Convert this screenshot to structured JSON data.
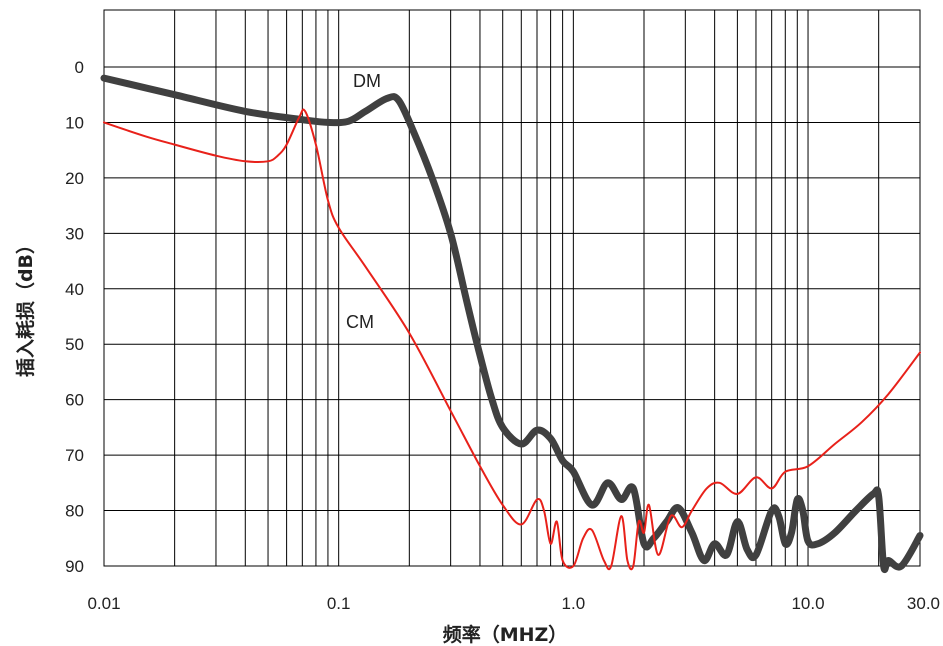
{
  "chart_data": {
    "type": "line",
    "xlabel": "频率（MHZ）",
    "ylabel": "插入耗损（dB）",
    "x_scale": "log",
    "xlim": [
      0.01,
      30.0
    ],
    "ylim": [
      0,
      90
    ],
    "y_inverted": true,
    "grid": true,
    "x_tick_labels": [
      "0.01",
      "0.1",
      "1.0",
      "10.0",
      "30.0"
    ],
    "x_ticks": [
      0.01,
      0.1,
      1.0,
      10.0,
      30.0
    ],
    "y_ticks": [
      0,
      10,
      20,
      30,
      40,
      50,
      60,
      70,
      80,
      90
    ],
    "series": [
      {
        "name": "DM",
        "color": "#404040",
        "points": [
          [
            0.01,
            2
          ],
          [
            0.02,
            5
          ],
          [
            0.04,
            8
          ],
          [
            0.07,
            9.5
          ],
          [
            0.09,
            10
          ],
          [
            0.11,
            9.8
          ],
          [
            0.13,
            8
          ],
          [
            0.16,
            5.7
          ],
          [
            0.18,
            6
          ],
          [
            0.21,
            12
          ],
          [
            0.25,
            20
          ],
          [
            0.3,
            30
          ],
          [
            0.35,
            42
          ],
          [
            0.4,
            52
          ],
          [
            0.45,
            60
          ],
          [
            0.5,
            65
          ],
          [
            0.6,
            68
          ],
          [
            0.7,
            65.5
          ],
          [
            0.8,
            67
          ],
          [
            0.9,
            71
          ],
          [
            1.0,
            73
          ],
          [
            1.2,
            79
          ],
          [
            1.4,
            75
          ],
          [
            1.6,
            78
          ],
          [
            1.8,
            76
          ],
          [
            2.0,
            86
          ],
          [
            2.2,
            85
          ],
          [
            2.5,
            82
          ],
          [
            2.8,
            79.5
          ],
          [
            3.2,
            84
          ],
          [
            3.6,
            89
          ],
          [
            4.0,
            86
          ],
          [
            4.5,
            88
          ],
          [
            5.0,
            82
          ],
          [
            5.5,
            87
          ],
          [
            6.0,
            88
          ],
          [
            7.0,
            80
          ],
          [
            7.5,
            81
          ],
          [
            8.0,
            86
          ],
          [
            8.5,
            84
          ],
          [
            9.0,
            78
          ],
          [
            9.5,
            80
          ],
          [
            10.0,
            85.5
          ],
          [
            11.0,
            86
          ],
          [
            13.0,
            84
          ],
          [
            16.0,
            80
          ],
          [
            19.0,
            77
          ],
          [
            20.0,
            77.5
          ],
          [
            21.0,
            90
          ],
          [
            22.0,
            89
          ],
          [
            25.0,
            90
          ],
          [
            30.0,
            84.5
          ]
        ]
      },
      {
        "name": "CM",
        "color": "#e8211a",
        "points": [
          [
            0.01,
            10
          ],
          [
            0.015,
            12.5
          ],
          [
            0.02,
            14
          ],
          [
            0.03,
            16
          ],
          [
            0.04,
            17
          ],
          [
            0.05,
            17
          ],
          [
            0.055,
            16
          ],
          [
            0.06,
            14
          ],
          [
            0.068,
            9
          ],
          [
            0.072,
            8
          ],
          [
            0.08,
            14
          ],
          [
            0.09,
            24
          ],
          [
            0.1,
            29
          ],
          [
            0.13,
            36
          ],
          [
            0.2,
            48
          ],
          [
            0.3,
            62
          ],
          [
            0.4,
            72
          ],
          [
            0.5,
            79
          ],
          [
            0.6,
            82.5
          ],
          [
            0.7,
            78
          ],
          [
            0.75,
            80
          ],
          [
            0.8,
            86
          ],
          [
            0.85,
            82
          ],
          [
            0.9,
            89
          ],
          [
            1.0,
            90
          ],
          [
            1.1,
            85
          ],
          [
            1.2,
            83.5
          ],
          [
            1.35,
            89
          ],
          [
            1.45,
            90
          ],
          [
            1.6,
            81
          ],
          [
            1.7,
            89
          ],
          [
            1.8,
            90
          ],
          [
            1.9,
            82
          ],
          [
            2.0,
            84
          ],
          [
            2.1,
            79
          ],
          [
            2.3,
            88
          ],
          [
            2.6,
            81
          ],
          [
            2.9,
            83
          ],
          [
            3.2,
            80
          ],
          [
            3.7,
            76
          ],
          [
            4.2,
            75
          ],
          [
            5.0,
            77
          ],
          [
            6.0,
            74
          ],
          [
            7.0,
            76
          ],
          [
            8.0,
            73
          ],
          [
            10.0,
            72
          ],
          [
            13.0,
            68
          ],
          [
            17.0,
            64
          ],
          [
            22.0,
            59
          ],
          [
            30.0,
            51.5
          ]
        ]
      }
    ]
  }
}
